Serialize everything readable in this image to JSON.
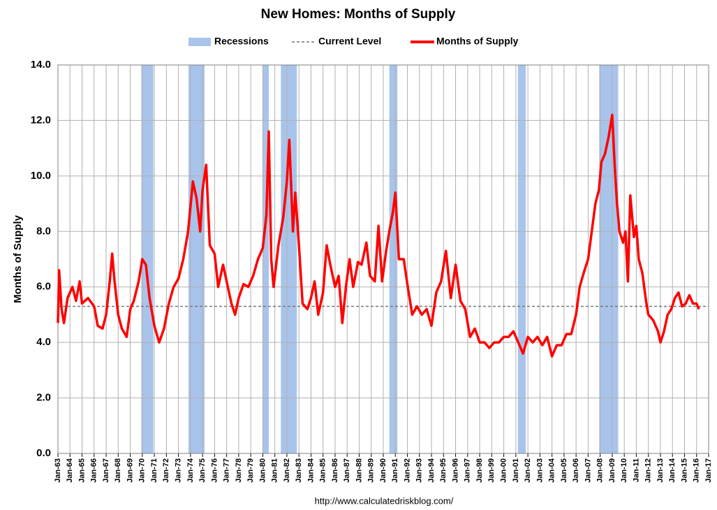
{
  "chart_data": {
    "type": "line",
    "title": "New Homes: Months of Supply",
    "y_label": "Months of Supply",
    "source": "http://www.calculatedriskblog.com/",
    "xlim": [
      1963,
      2017
    ],
    "ylim": [
      0,
      14
    ],
    "yticks": [
      {
        "value": 0,
        "label": "0.0"
      },
      {
        "value": 2,
        "label": "2.0"
      },
      {
        "value": 4,
        "label": "4.0"
      },
      {
        "value": 6,
        "label": "6.0"
      },
      {
        "value": 8,
        "label": "8.0"
      },
      {
        "value": 10,
        "label": "10.0"
      },
      {
        "value": 12,
        "label": "12.0"
      },
      {
        "value": 14,
        "label": "14.0"
      }
    ],
    "xticks": [
      {
        "value": 1963,
        "label": "Jan-63"
      },
      {
        "value": 1964,
        "label": "Jan-64"
      },
      {
        "value": 1965,
        "label": "Jan-65"
      },
      {
        "value": 1966,
        "label": "Jan-66"
      },
      {
        "value": 1967,
        "label": "Jan-67"
      },
      {
        "value": 1968,
        "label": "Jan-68"
      },
      {
        "value": 1969,
        "label": "Jan-69"
      },
      {
        "value": 1970,
        "label": "Jan-70"
      },
      {
        "value": 1971,
        "label": "Jan-71"
      },
      {
        "value": 1972,
        "label": "Jan-72"
      },
      {
        "value": 1973,
        "label": "Jan-73"
      },
      {
        "value": 1974,
        "label": "Jan-74"
      },
      {
        "value": 1975,
        "label": "Jan-75"
      },
      {
        "value": 1976,
        "label": "Jan-76"
      },
      {
        "value": 1977,
        "label": "Jan-77"
      },
      {
        "value": 1978,
        "label": "Jan-78"
      },
      {
        "value": 1979,
        "label": "Jan-79"
      },
      {
        "value": 1980,
        "label": "Jan-80"
      },
      {
        "value": 1981,
        "label": "Jan-81"
      },
      {
        "value": 1982,
        "label": "Jan-82"
      },
      {
        "value": 1983,
        "label": "Jan-83"
      },
      {
        "value": 1984,
        "label": "Jan-84"
      },
      {
        "value": 1985,
        "label": "Jan-85"
      },
      {
        "value": 1986,
        "label": "Jan-86"
      },
      {
        "value": 1987,
        "label": "Jan-87"
      },
      {
        "value": 1988,
        "label": "Jan-88"
      },
      {
        "value": 1989,
        "label": "Jan-89"
      },
      {
        "value": 1990,
        "label": "Jan-90"
      },
      {
        "value": 1991,
        "label": "Jan-91"
      },
      {
        "value": 1992,
        "label": "Jan-92"
      },
      {
        "value": 1993,
        "label": "Jan-93"
      },
      {
        "value": 1994,
        "label": "Jan-94"
      },
      {
        "value": 1995,
        "label": "Jan-95"
      },
      {
        "value": 1996,
        "label": "Jan-96"
      },
      {
        "value": 1997,
        "label": "Jan-97"
      },
      {
        "value": 1998,
        "label": "Jan-98"
      },
      {
        "value": 1999,
        "label": "Jan-99"
      },
      {
        "value": 2000,
        "label": "Jan-00"
      },
      {
        "value": 2001,
        "label": "Jan-01"
      },
      {
        "value": 2002,
        "label": "Jan-02"
      },
      {
        "value": 2003,
        "label": "Jan-03"
      },
      {
        "value": 2004,
        "label": "Jan-04"
      },
      {
        "value": 2005,
        "label": "Jan-05"
      },
      {
        "value": 2006,
        "label": "Jan-06"
      },
      {
        "value": 2007,
        "label": "Jan-07"
      },
      {
        "value": 2008,
        "label": "Jan-08"
      },
      {
        "value": 2009,
        "label": "Jan-09"
      },
      {
        "value": 2010,
        "label": "Jan-10"
      },
      {
        "value": 2011,
        "label": "Jan-11"
      },
      {
        "value": 2012,
        "label": "Jan-12"
      },
      {
        "value": 2013,
        "label": "Jan-13"
      },
      {
        "value": 2014,
        "label": "Jan-14"
      },
      {
        "value": 2015,
        "label": "Jan-15"
      },
      {
        "value": 2016,
        "label": "Jan-16"
      },
      {
        "value": 2017,
        "label": "Jan-17"
      }
    ],
    "grid": true,
    "recessions": {
      "name": "Recessions",
      "color": "#a9c4eb",
      "periods": [
        [
          1969.92,
          1970.92
        ],
        [
          1973.83,
          1975.17
        ],
        [
          1980.0,
          1980.5
        ],
        [
          1981.5,
          1982.83
        ],
        [
          1990.5,
          1991.17
        ],
        [
          2001.17,
          2001.83
        ],
        [
          2007.92,
          2009.5
        ]
      ]
    },
    "current_level": {
      "name": "Current Level",
      "value": 5.3,
      "color": "#777777"
    },
    "x": [
      1963.0,
      1963.1,
      1963.3,
      1963.5,
      1963.8,
      1964.2,
      1964.5,
      1964.8,
      1965.0,
      1965.5,
      1966.0,
      1966.3,
      1966.7,
      1967.0,
      1967.3,
      1967.5,
      1967.7,
      1968.0,
      1968.3,
      1968.7,
      1969.0,
      1969.3,
      1969.7,
      1970.0,
      1970.3,
      1970.6,
      1971.0,
      1971.4,
      1971.8,
      1972.2,
      1972.6,
      1973.0,
      1973.4,
      1973.8,
      1974.2,
      1974.5,
      1974.8,
      1975.0,
      1975.3,
      1975.6,
      1976.0,
      1976.3,
      1976.7,
      1977.0,
      1977.4,
      1977.7,
      1978.0,
      1978.4,
      1978.8,
      1979.2,
      1979.6,
      1980.0,
      1980.3,
      1980.5,
      1980.7,
      1980.9,
      1981.3,
      1981.7,
      1982.0,
      1982.2,
      1982.5,
      1982.7,
      1983.0,
      1983.3,
      1983.7,
      1984.0,
      1984.3,
      1984.6,
      1985.0,
      1985.3,
      1985.6,
      1986.0,
      1986.3,
      1986.6,
      1986.9,
      1987.2,
      1987.5,
      1987.9,
      1988.2,
      1988.6,
      1988.9,
      1989.3,
      1989.6,
      1989.9,
      1990.2,
      1990.5,
      1990.8,
      1991.0,
      1991.3,
      1991.7,
      1992.0,
      1992.4,
      1992.8,
      1993.2,
      1993.6,
      1994.0,
      1994.4,
      1994.8,
      1995.2,
      1995.6,
      1996.0,
      1996.4,
      1996.8,
      1997.2,
      1997.6,
      1998.0,
      1998.4,
      1998.8,
      1999.2,
      1999.6,
      2000.0,
      2000.4,
      2000.8,
      2001.2,
      2001.6,
      2002.0,
      2002.4,
      2002.8,
      2003.2,
      2003.6,
      2004.0,
      2004.4,
      2004.8,
      2005.2,
      2005.6,
      2006.0,
      2006.3,
      2006.7,
      2007.0,
      2007.3,
      2007.6,
      2007.9,
      2008.1,
      2008.4,
      2008.7,
      2009.0,
      2009.2,
      2009.4,
      2009.6,
      2009.9,
      2010.1,
      2010.3,
      2010.5,
      2010.8,
      2011.0,
      2011.2,
      2011.5,
      2011.8,
      2012.0,
      2012.4,
      2012.8,
      2013.0,
      2013.3,
      2013.6,
      2013.9,
      2014.2,
      2014.5,
      2014.8,
      2015.1,
      2015.4,
      2015.7,
      2016.0,
      2016.2
    ],
    "series": [
      {
        "name": "Months of Supply",
        "color": "#ff0000",
        "values": [
          4.7,
          6.6,
          5.2,
          4.7,
          5.6,
          6.0,
          5.5,
          6.2,
          5.4,
          5.6,
          5.3,
          4.6,
          4.5,
          5.0,
          6.2,
          7.2,
          6.2,
          5.0,
          4.5,
          4.2,
          5.2,
          5.5,
          6.2,
          7.0,
          6.8,
          5.6,
          4.6,
          4.0,
          4.5,
          5.4,
          6.0,
          6.3,
          7.0,
          8.0,
          9.8,
          9.2,
          8.0,
          9.5,
          10.4,
          7.5,
          7.2,
          6.0,
          6.8,
          6.2,
          5.4,
          5.0,
          5.6,
          6.1,
          6.0,
          6.4,
          7.0,
          7.4,
          8.6,
          11.6,
          7.0,
          6.0,
          7.5,
          8.5,
          9.8,
          11.3,
          8.0,
          9.4,
          7.5,
          5.4,
          5.2,
          5.6,
          6.2,
          5.0,
          5.8,
          7.5,
          6.8,
          6.0,
          6.4,
          4.7,
          6.0,
          7.0,
          6.0,
          6.9,
          6.8,
          7.6,
          6.4,
          6.2,
          8.2,
          6.2,
          7.2,
          8.0,
          8.7,
          9.4,
          7.0,
          7.0,
          6.1,
          5.0,
          5.3,
          5.0,
          5.2,
          4.6,
          5.8,
          6.2,
          7.3,
          5.6,
          6.8,
          5.5,
          5.2,
          4.2,
          4.5,
          4.0,
          4.0,
          3.8,
          4.0,
          4.0,
          4.2,
          4.2,
          4.4,
          4.0,
          3.6,
          4.2,
          4.0,
          4.2,
          3.9,
          4.2,
          3.5,
          3.9,
          3.9,
          4.3,
          4.3,
          5.0,
          6.0,
          6.6,
          7.0,
          8.0,
          9.0,
          9.5,
          10.5,
          10.8,
          11.4,
          12.2,
          10.4,
          9.0,
          8.0,
          7.6,
          8.0,
          6.2,
          9.3,
          7.8,
          8.2,
          7.0,
          6.5,
          5.5,
          5.0,
          4.8,
          4.4,
          4.0,
          4.4,
          5.0,
          5.2,
          5.6,
          5.8,
          5.3,
          5.4,
          5.7,
          5.4,
          5.4,
          5.2
        ]
      }
    ]
  }
}
